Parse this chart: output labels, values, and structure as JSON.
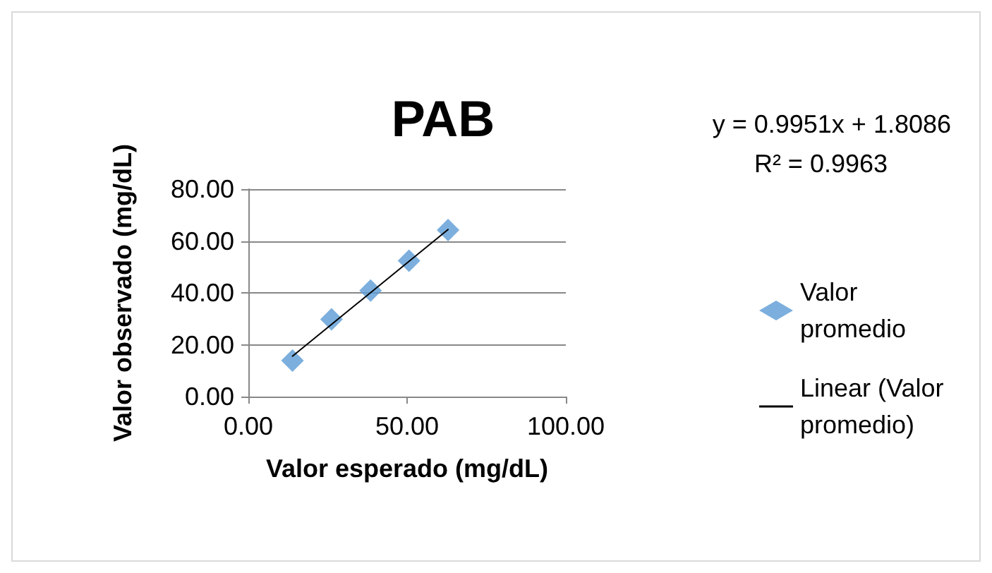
{
  "chart_data": {
    "type": "scatter",
    "title": "PAB",
    "xlabel": "Valor esperado (mg/dL)",
    "ylabel": "Valor observado (mg/dL)",
    "annotations": [
      "y = 0.9951x + 1.8086",
      "R² = 0.9963"
    ],
    "series": [
      {
        "name": "Valor promedio",
        "color": "#5b9bd5",
        "marker": "diamond",
        "x": [
          13.9,
          26.2,
          38.5,
          50.6,
          62.9
        ],
        "values": [
          13.9,
          29.8,
          40.9,
          52.4,
          64.2
        ]
      },
      {
        "name": "Linear (Valor promedio)",
        "type": "line",
        "color": "#000000",
        "marker": "none",
        "x": [
          13.9,
          62.9
        ],
        "values": [
          15.6,
          64.4
        ]
      }
    ],
    "xlim": [
      0,
      100
    ],
    "xticks": [
      {
        "value": 0,
        "label": "0.00"
      },
      {
        "value": 50,
        "label": "50.00"
      },
      {
        "value": 100,
        "label": "100.00"
      }
    ],
    "ylim": [
      0,
      80
    ],
    "yticks": [
      {
        "value": 0,
        "label": "0.00"
      },
      {
        "value": 20,
        "label": "20.00"
      },
      {
        "value": 40,
        "label": "40.00"
      },
      {
        "value": 60,
        "label": "60.00"
      },
      {
        "value": 80,
        "label": "80.00"
      }
    ],
    "grid": "y",
    "legend": "right"
  }
}
